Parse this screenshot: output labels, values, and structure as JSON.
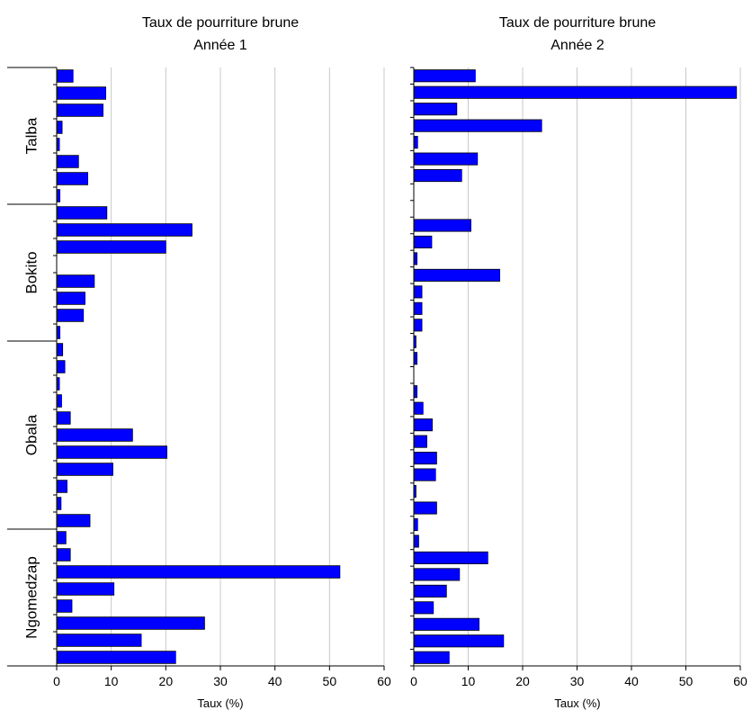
{
  "chart_data": [
    {
      "type": "bar",
      "orientation": "horizontal",
      "title": "Taux de pourriture brune",
      "subtitle": "Année 1",
      "xlabel": "Taux (%)",
      "ylabel": "",
      "xlim": [
        0,
        60
      ],
      "xticks": [
        0,
        10,
        20,
        30,
        40,
        50,
        60
      ],
      "grid": "vertical",
      "bar_color": "#0000ff",
      "groups": [
        {
          "label": "Talba",
          "values": [
            3.0,
            9.0,
            8.5,
            1.0,
            0.5,
            4.0,
            5.7,
            0.6
          ]
        },
        {
          "label": "Bokito",
          "values": [
            9.2,
            24.8,
            20.0,
            0.0,
            6.9,
            5.2,
            4.9,
            0.6
          ]
        },
        {
          "label": "Obala",
          "values": [
            1.1,
            1.5,
            0.5,
            0.9,
            2.5,
            13.9,
            20.2,
            10.3,
            1.9,
            0.8,
            6.1
          ]
        },
        {
          "label": "Ngomedzap",
          "values": [
            1.7,
            2.5,
            51.9,
            10.5,
            2.8,
            27.1,
            15.5,
            21.8
          ]
        }
      ]
    },
    {
      "type": "bar",
      "orientation": "horizontal",
      "title": "Taux de pourriture brune",
      "subtitle": "Année 2",
      "xlabel": "Taux (%)",
      "ylabel": "",
      "xlim": [
        0,
        60
      ],
      "xticks": [
        0,
        10,
        20,
        30,
        40,
        50,
        60
      ],
      "grid": "vertical",
      "bar_color": "#0000ff",
      "groups": [
        {
          "label": "Talba",
          "values": [
            11.3,
            59.3,
            7.9,
            23.5,
            0.7,
            11.7,
            8.8,
            0.0
          ]
        },
        {
          "label": "Bokito",
          "values": [
            0.0,
            10.5,
            3.3,
            0.6,
            15.8,
            1.5,
            1.5,
            1.5
          ]
        },
        {
          "label": "Obala",
          "values": [
            0.4,
            0.6,
            0.0,
            0.6,
            1.7,
            3.4,
            2.4,
            4.2,
            4.0,
            0.4,
            4.2
          ]
        },
        {
          "label": "Ngomedzap",
          "values": [
            0.7,
            0.9,
            13.6,
            8.4,
            6.0,
            3.6,
            12.0,
            16.5,
            6.5
          ]
        }
      ]
    }
  ]
}
